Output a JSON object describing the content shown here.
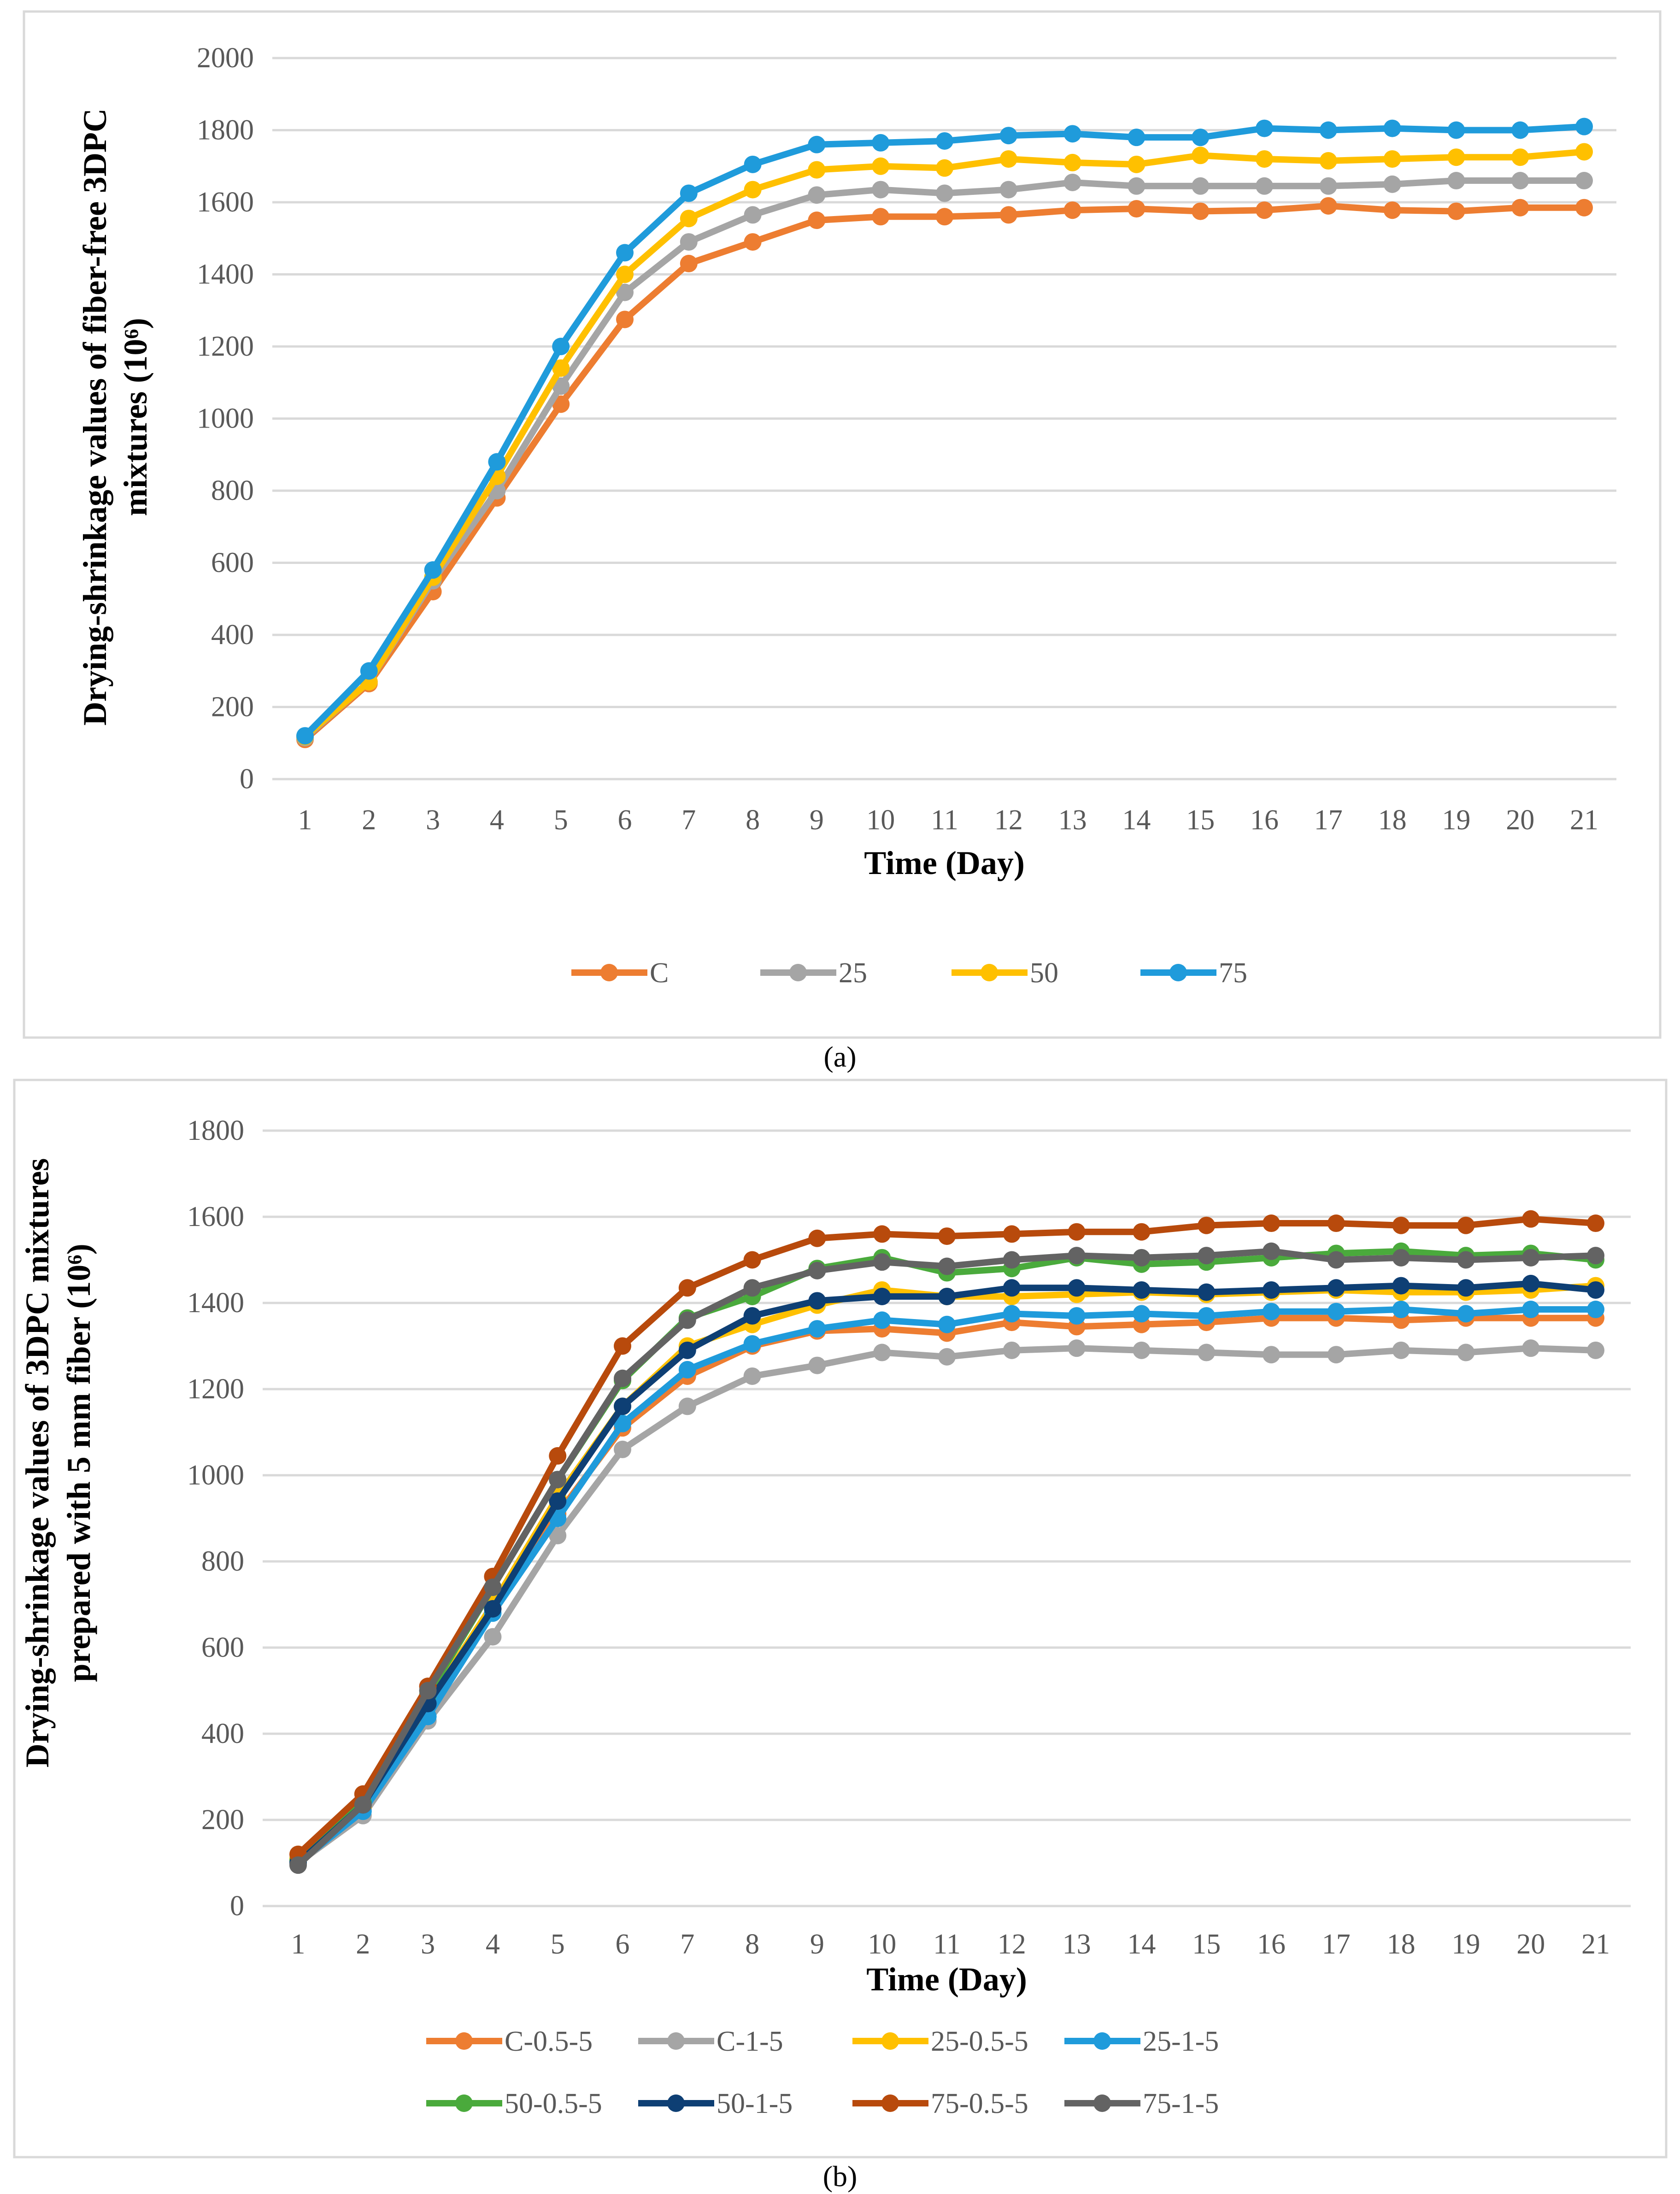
{
  "chart_data": [
    {
      "type": "line",
      "caption": "(a)",
      "title": "",
      "xlabel": "Time (Day)",
      "ylabel_lines": [
        "Drying-shrinkage values of fiber-free 3DPC",
        "mixtures (10⁶)"
      ],
      "ylim": [
        0,
        2000
      ],
      "ystep": 200,
      "grid": true,
      "legend": "bottom",
      "x": [
        1,
        2,
        3,
        4,
        5,
        6,
        7,
        8,
        9,
        10,
        11,
        12,
        13,
        14,
        15,
        16,
        17,
        18,
        19,
        20,
        21
      ],
      "series": [
        {
          "name": "C",
          "color": "#ED7D31",
          "values": [
            110,
            265,
            520,
            780,
            1040,
            1275,
            1430,
            1490,
            1550,
            1560,
            1560,
            1565,
            1578,
            1582,
            1575,
            1578,
            1590,
            1578,
            1575,
            1585,
            1585
          ]
        },
        {
          "name": "25",
          "color": "#A5A5A5",
          "values": [
            115,
            270,
            550,
            800,
            1090,
            1350,
            1490,
            1565,
            1620,
            1635,
            1625,
            1635,
            1655,
            1645,
            1645,
            1645,
            1645,
            1650,
            1660,
            1660,
            1660
          ]
        },
        {
          "name": "50",
          "color": "#FFC000",
          "values": [
            118,
            270,
            560,
            840,
            1140,
            1400,
            1555,
            1635,
            1690,
            1700,
            1695,
            1720,
            1710,
            1705,
            1730,
            1720,
            1715,
            1720,
            1725,
            1725,
            1740
          ]
        },
        {
          "name": "75",
          "color": "#1F9BDB",
          "values": [
            120,
            300,
            580,
            880,
            1200,
            1460,
            1625,
            1705,
            1760,
            1765,
            1770,
            1785,
            1790,
            1780,
            1780,
            1805,
            1800,
            1805,
            1800,
            1800,
            1810
          ]
        }
      ]
    },
    {
      "type": "line",
      "caption": "(b)",
      "title": "",
      "xlabel": "Time (Day)",
      "ylabel_lines": [
        "Drying-shrinkage values of 3DPC mixtures",
        "prepared with 5 mm fiber (10⁶)"
      ],
      "ylim": [
        0,
        1800
      ],
      "ystep": 200,
      "grid": true,
      "legend": "bottom",
      "x": [
        1,
        2,
        3,
        4,
        5,
        6,
        7,
        8,
        9,
        10,
        11,
        12,
        13,
        14,
        15,
        16,
        17,
        18,
        19,
        20,
        21
      ],
      "series": [
        {
          "name": "C-0.5-5",
          "color": "#ED7D31",
          "values": [
            105,
            225,
            450,
            690,
            910,
            1110,
            1230,
            1300,
            1335,
            1340,
            1330,
            1355,
            1345,
            1350,
            1355,
            1365,
            1365,
            1360,
            1365,
            1365,
            1365
          ]
        },
        {
          "name": "C-1-5",
          "color": "#A5A5A5",
          "values": [
            100,
            210,
            430,
            625,
            860,
            1060,
            1160,
            1230,
            1255,
            1285,
            1275,
            1290,
            1295,
            1290,
            1285,
            1280,
            1280,
            1290,
            1285,
            1295,
            1290
          ]
        },
        {
          "name": "25-0.5-5",
          "color": "#FFC000",
          "values": [
            110,
            230,
            470,
            700,
            950,
            1160,
            1300,
            1350,
            1395,
            1430,
            1415,
            1415,
            1420,
            1425,
            1420,
            1425,
            1430,
            1425,
            1425,
            1430,
            1440
          ]
        },
        {
          "name": "25-1-5",
          "color": "#1F9BDB",
          "values": [
            100,
            220,
            440,
            680,
            900,
            1120,
            1245,
            1305,
            1340,
            1360,
            1350,
            1375,
            1370,
            1375,
            1370,
            1380,
            1380,
            1385,
            1375,
            1385,
            1385
          ]
        },
        {
          "name": "50-0.5-5",
          "color": "#4AAA3C",
          "values": [
            105,
            240,
            490,
            740,
            990,
            1220,
            1365,
            1415,
            1480,
            1505,
            1470,
            1480,
            1505,
            1490,
            1495,
            1505,
            1515,
            1520,
            1510,
            1515,
            1500
          ]
        },
        {
          "name": "50-1-5",
          "color": "#0E3F74",
          "values": [
            100,
            235,
            470,
            690,
            940,
            1160,
            1290,
            1370,
            1405,
            1415,
            1415,
            1435,
            1435,
            1430,
            1425,
            1430,
            1435,
            1440,
            1435,
            1445,
            1430
          ]
        },
        {
          "name": "75-0.5-5",
          "color": "#B84A0C",
          "values": [
            120,
            260,
            510,
            765,
            1045,
            1300,
            1435,
            1500,
            1550,
            1560,
            1555,
            1560,
            1565,
            1565,
            1580,
            1585,
            1585,
            1580,
            1580,
            1595,
            1585
          ]
        },
        {
          "name": "75-1-5",
          "color": "#636363",
          "values": [
            95,
            235,
            500,
            740,
            990,
            1225,
            1360,
            1435,
            1475,
            1495,
            1485,
            1500,
            1510,
            1505,
            1510,
            1520,
            1500,
            1505,
            1500,
            1505,
            1510
          ]
        }
      ]
    }
  ]
}
